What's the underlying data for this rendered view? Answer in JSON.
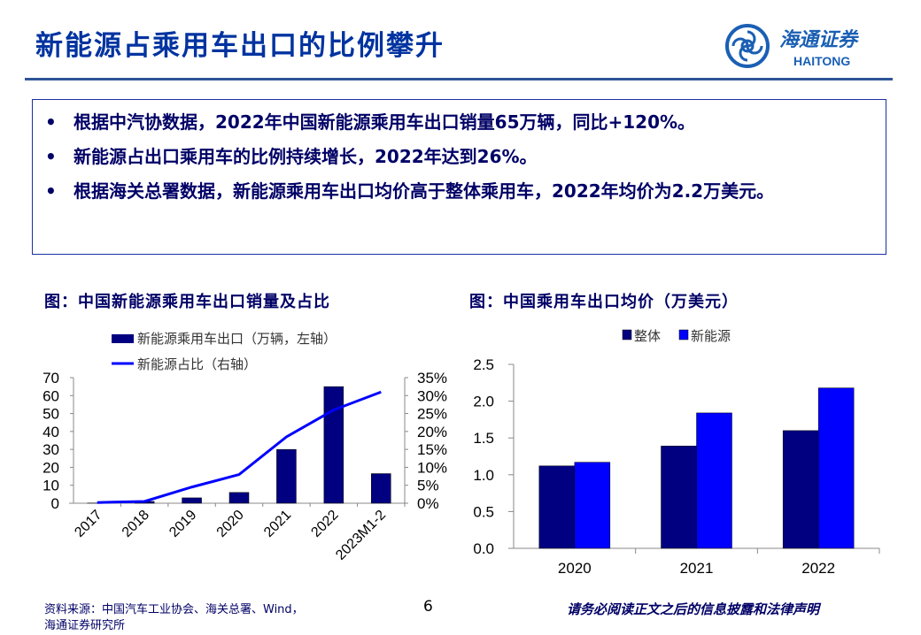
{
  "title": "新能源占乘用车出口的比例攀升",
  "logo": {
    "cn": "海通证券",
    "en": "HAITONG",
    "color": "#1a5fb4"
  },
  "bullets": [
    "根据中汽协数据，2022年中国新能源乘用车出口销量65万辆，同比+120%。",
    "新能源占出口乘用车的比例持续增长，2022年达到26%。",
    "根据海关总署数据，新能源乘用车出口均价高于整体乘用车，2022年均价为2.2万美元。"
  ],
  "chart_data": [
    {
      "type": "bar+line",
      "title": "图：中国新能源乘用车出口销量及占比",
      "categories": [
        "2017",
        "2018",
        "2019",
        "2020",
        "2021",
        "2022",
        "2023M1-2"
      ],
      "series": [
        {
          "name": "新能源乘用车出口（万辆，左轴）",
          "type": "bar",
          "axis": "left",
          "color": "#000080",
          "values": [
            0.1,
            1,
            3,
            6,
            30,
            65,
            16.5
          ]
        },
        {
          "name": "新能源占比（右轴）",
          "type": "line",
          "axis": "right",
          "color": "#0000ff",
          "values": [
            0.2,
            0.5,
            4.5,
            8,
            18.5,
            26,
            31
          ]
        }
      ],
      "ylim_left": [
        0,
        70
      ],
      "yticks_left": [
        "0",
        "10",
        "20",
        "30",
        "40",
        "50",
        "60",
        "70"
      ],
      "ylim_right": [
        0,
        35
      ],
      "yticks_right": [
        "0%",
        "5%",
        "10%",
        "15%",
        "20%",
        "25%",
        "30%",
        "35%"
      ],
      "legend": "top",
      "grid": false
    },
    {
      "type": "bar",
      "title": "图：中国乘用车出口均价（万美元）",
      "categories": [
        "2020",
        "2021",
        "2022"
      ],
      "series": [
        {
          "name": "整体",
          "color": "#000080",
          "values": [
            1.12,
            1.39,
            1.6
          ]
        },
        {
          "name": "新能源",
          "color": "#0000ff",
          "values": [
            1.17,
            1.84,
            2.18
          ]
        }
      ],
      "ylim": [
        0,
        2.5
      ],
      "yticks": [
        "0.0",
        "0.5",
        "1.0",
        "1.5",
        "2.0",
        "2.5"
      ],
      "legend": "top",
      "grid": false
    }
  ],
  "footer": {
    "source": "资料来源：中国汽车工业协会、海关总署、Wind，",
    "source2": "海通证券研究所",
    "page": "6",
    "disclaimer": "请务必阅读正文之后的信息披露和法律声明"
  }
}
